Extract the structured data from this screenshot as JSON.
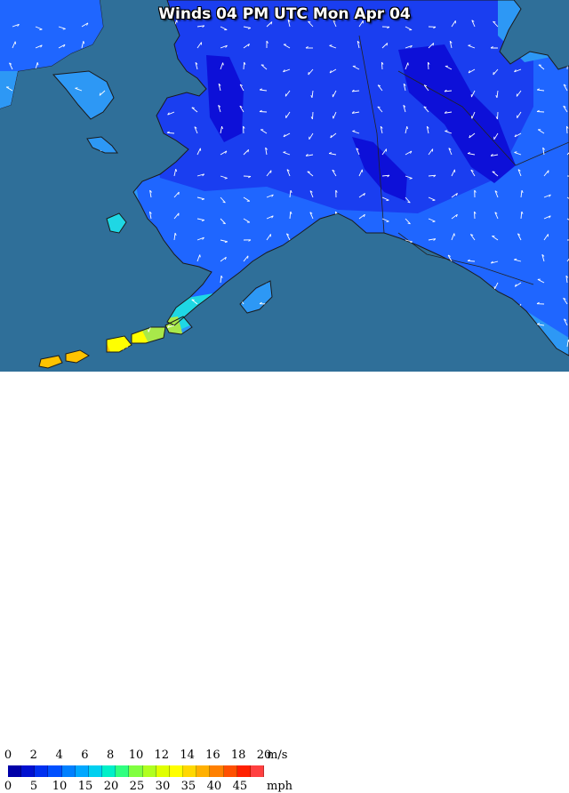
{
  "title": "Winds 04 PM UTC Mon Apr 04",
  "colors": {
    "ocean": "#2f6f99",
    "land_unmapped": "#f2f2f2",
    "wind_0_2": "#0d10d8",
    "wind_2_4": "#1a3ef0",
    "wind_4_6": "#1f66ff",
    "wind_6_8": "#2d98f5",
    "wind_8_10": "#1fd7e4",
    "wind_10_12": "#a8e84a",
    "wind_12_14": "#ffff00",
    "wind_14_16": "#ffc300"
  },
  "legend": {
    "ms_ticks": [
      "0",
      "2",
      "4",
      "6",
      "8",
      "10",
      "12",
      "14",
      "16",
      "18",
      "20"
    ],
    "ms_unit": "m/s",
    "mph_ticks": [
      "0",
      "5",
      "10",
      "15",
      "20",
      "25",
      "30",
      "35",
      "40",
      "45"
    ],
    "mph_unit": "mph",
    "swatches": [
      "#0000a8",
      "#0010d0",
      "#0030f0",
      "#0050ff",
      "#0080ff",
      "#00a8ff",
      "#00d0f0",
      "#00f0c8",
      "#30ff80",
      "#80ff40",
      "#b0ff20",
      "#e0ff00",
      "#ffff00",
      "#ffd800",
      "#ffb000",
      "#ff8000",
      "#ff5000",
      "#ff2000",
      "#ff4040"
    ]
  }
}
